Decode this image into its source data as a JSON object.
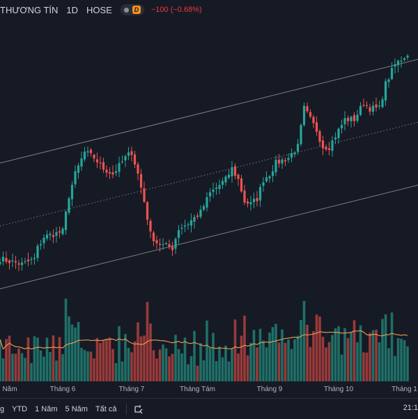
{
  "header": {
    "name_fragment": "THƯƠNG TÍN",
    "interval": "1D",
    "exchange": "HOSE",
    "badge_letter": "D",
    "change_text": "−100 (−0.68%)"
  },
  "toolbar": {
    "items": [
      "g",
      "YTD",
      "1 Năm",
      "5 Năm",
      "Tất cả"
    ],
    "clock": "21:1"
  },
  "colors": {
    "up": "#26a69a",
    "down": "#ef5350",
    "up_volume": "#1f6f68",
    "down_volume": "#9a3a3a",
    "ma_line": "#f0a050",
    "channel": "#9598a1",
    "background": "#161a25"
  },
  "chart_data": {
    "type": "candlestick",
    "series_count": 1,
    "price_range": [
      14200,
      19300
    ],
    "volume_range": [
      0,
      1000
    ],
    "x_labels": [
      {
        "text": "Năm",
        "index": 0
      },
      {
        "text": "Tháng 6",
        "index": 20
      },
      {
        "text": "Tháng 7",
        "index": 42
      },
      {
        "text": "Tháng Tám",
        "index": 63
      },
      {
        "text": "Tháng 9",
        "index": 86
      },
      {
        "text": "Tháng 10",
        "index": 108
      },
      {
        "text": "Tháng 1",
        "index": 129
      }
    ],
    "close_path": [
      [
        0,
        14950
      ],
      [
        7,
        14850
      ],
      [
        11,
        14950
      ],
      [
        12,
        15150
      ],
      [
        14,
        15350
      ],
      [
        20,
        15450
      ],
      [
        22,
        16100
      ],
      [
        24,
        16500
      ],
      [
        27,
        16900
      ],
      [
        30,
        16800
      ],
      [
        33,
        16600
      ],
      [
        36,
        16500
      ],
      [
        40,
        16800
      ],
      [
        42,
        16900
      ],
      [
        44,
        16500
      ],
      [
        46,
        16000
      ],
      [
        48,
        15400
      ],
      [
        50,
        15250
      ],
      [
        52,
        15200
      ],
      [
        55,
        15150
      ],
      [
        57,
        15500
      ],
      [
        60,
        15600
      ],
      [
        62,
        15700
      ],
      [
        64,
        15800
      ],
      [
        67,
        16150
      ],
      [
        70,
        16300
      ],
      [
        72,
        16400
      ],
      [
        74,
        16600
      ],
      [
        76,
        16400
      ],
      [
        78,
        16000
      ],
      [
        80,
        15950
      ],
      [
        82,
        16050
      ],
      [
        84,
        16400
      ],
      [
        86,
        16500
      ],
      [
        88,
        16700
      ],
      [
        92,
        16800
      ],
      [
        95,
        17000
      ],
      [
        97,
        17700
      ],
      [
        99,
        17500
      ],
      [
        101,
        17300
      ],
      [
        103,
        17000
      ],
      [
        105,
        17000
      ],
      [
        107,
        17200
      ],
      [
        110,
        17500
      ],
      [
        113,
        17500
      ],
      [
        116,
        17800
      ],
      [
        118,
        17700
      ],
      [
        121,
        17700
      ],
      [
        123,
        18150
      ],
      [
        126,
        18500
      ],
      [
        128,
        18600
      ],
      [
        130,
        18700
      ]
    ],
    "channel_lines": [
      {
        "name": "upper",
        "points": [
          [
            0,
            16700
          ],
          [
            130,
            18550
          ]
        ]
      },
      {
        "name": "middle",
        "points": [
          [
            0,
            15550
          ],
          [
            130,
            17400
          ],
          "dotted"
        ]
      },
      {
        "name": "lower",
        "points": [
          [
            0,
            14400
          ],
          [
            130,
            16250
          ]
        ]
      }
    ],
    "moving_average": "volume-ma"
  }
}
